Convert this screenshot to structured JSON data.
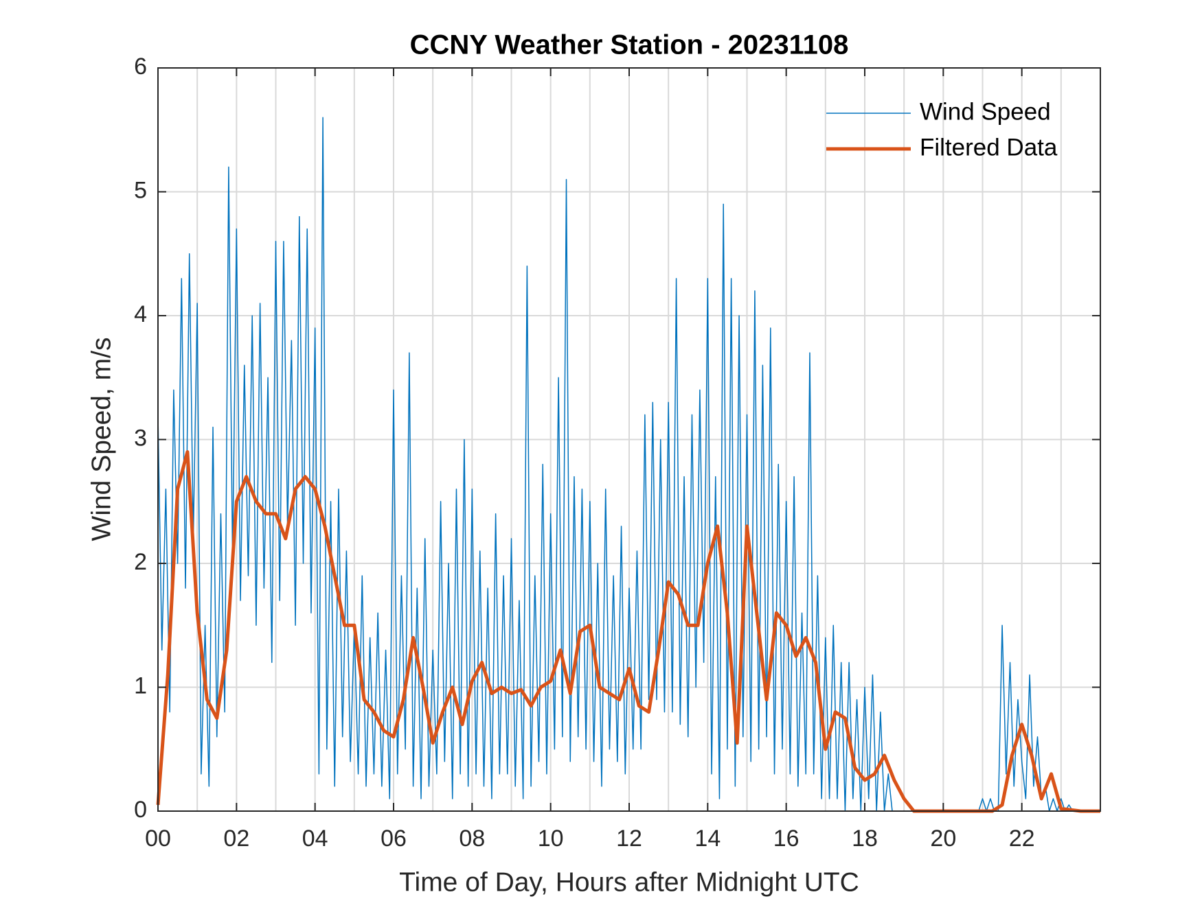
{
  "chart_data": {
    "type": "line",
    "title": "CCNY Weather Station - 20231108",
    "x_label": "Time of Day, Hours after Midnight UTC",
    "y_label": "Wind Speed, m/s",
    "xlim": [
      0,
      24
    ],
    "ylim": [
      0,
      6
    ],
    "xticks": [
      {
        "value": 0,
        "label": "00"
      },
      {
        "value": 2,
        "label": "02"
      },
      {
        "value": 4,
        "label": "04"
      },
      {
        "value": 6,
        "label": "06"
      },
      {
        "value": 8,
        "label": "08"
      },
      {
        "value": 10,
        "label": "10"
      },
      {
        "value": 12,
        "label": "12"
      },
      {
        "value": 14,
        "label": "14"
      },
      {
        "value": 16,
        "label": "16"
      },
      {
        "value": 18,
        "label": "18"
      },
      {
        "value": 20,
        "label": "20"
      },
      {
        "value": 22,
        "label": "22"
      }
    ],
    "xminorticks": [
      1,
      3,
      5,
      7,
      9,
      11,
      13,
      15,
      17,
      19,
      21,
      23
    ],
    "yticks": [
      0,
      1,
      2,
      3,
      4,
      5,
      6
    ],
    "grid": true,
    "legend": "upper right",
    "series": [
      {
        "name": "Wind Speed",
        "color": "#0072BD",
        "width": 1.5,
        "x": [
          0,
          0.1,
          0.2,
          0.3,
          0.4,
          0.5,
          0.6,
          0.7,
          0.8,
          0.9,
          1,
          1.1,
          1.2,
          1.3,
          1.4,
          1.5,
          1.6,
          1.7,
          1.8,
          1.9,
          2,
          2.1,
          2.2,
          2.3,
          2.4,
          2.5,
          2.6,
          2.7,
          2.8,
          2.9,
          3,
          3.1,
          3.2,
          3.3,
          3.4,
          3.5,
          3.6,
          3.7,
          3.8,
          3.9,
          4,
          4.1,
          4.2,
          4.3,
          4.4,
          4.5,
          4.6,
          4.7,
          4.8,
          4.9,
          5,
          5.1,
          5.2,
          5.3,
          5.4,
          5.5,
          5.6,
          5.7,
          5.8,
          5.9,
          6,
          6.1,
          6.2,
          6.3,
          6.4,
          6.5,
          6.6,
          6.7,
          6.8,
          6.9,
          7,
          7.1,
          7.2,
          7.3,
          7.4,
          7.5,
          7.6,
          7.7,
          7.8,
          7.9,
          8,
          8.1,
          8.2,
          8.3,
          8.4,
          8.5,
          8.6,
          8.7,
          8.8,
          8.9,
          9,
          9.1,
          9.2,
          9.3,
          9.4,
          9.5,
          9.6,
          9.7,
          9.8,
          9.9,
          10,
          10.1,
          10.2,
          10.3,
          10.4,
          10.5,
          10.6,
          10.7,
          10.8,
          10.9,
          11,
          11.1,
          11.2,
          11.3,
          11.4,
          11.5,
          11.6,
          11.7,
          11.8,
          11.9,
          12,
          12.1,
          12.2,
          12.3,
          12.4,
          12.5,
          12.6,
          12.7,
          12.8,
          12.9,
          13,
          13.1,
          13.2,
          13.3,
          13.4,
          13.5,
          13.6,
          13.7,
          13.8,
          13.9,
          14,
          14.1,
          14.2,
          14.3,
          14.4,
          14.5,
          14.6,
          14.7,
          14.8,
          14.9,
          15,
          15.1,
          15.2,
          15.3,
          15.4,
          15.5,
          15.6,
          15.7,
          15.8,
          15.9,
          16,
          16.1,
          16.2,
          16.3,
          16.4,
          16.5,
          16.6,
          16.7,
          16.8,
          16.9,
          17,
          17.1,
          17.2,
          17.3,
          17.4,
          17.5,
          17.6,
          17.7,
          17.8,
          17.9,
          18,
          18.1,
          18.2,
          18.3,
          18.4,
          18.5,
          18.6,
          18.7,
          18.8,
          18.9,
          19,
          19.1,
          19.2,
          19.3,
          19.4,
          19.5,
          19.6,
          19.7,
          19.8,
          19.9,
          20,
          20.1,
          20.2,
          20.3,
          20.4,
          20.5,
          20.6,
          20.7,
          20.8,
          20.9,
          21,
          21.1,
          21.2,
          21.3,
          21.4,
          21.5,
          21.6,
          21.7,
          21.8,
          21.9,
          22,
          22.1,
          22.2,
          22.3,
          22.4,
          22.5,
          22.6,
          22.7,
          22.8,
          22.9,
          23,
          23.1,
          23.2,
          23.3,
          23.4,
          23.5,
          23.6,
          23.7,
          23.8,
          23.9
        ],
        "values": [
          3.2,
          1.3,
          2.6,
          0.8,
          3.4,
          2.0,
          4.3,
          1.8,
          4.5,
          2.2,
          4.1,
          0.3,
          1.5,
          0.2,
          3.1,
          0.6,
          2.4,
          0.8,
          5.2,
          2.0,
          4.7,
          1.7,
          3.6,
          1.9,
          4.0,
          1.5,
          4.1,
          1.8,
          3.5,
          1.2,
          4.6,
          1.7,
          4.6,
          2.3,
          3.8,
          1.5,
          4.8,
          2.0,
          4.7,
          1.6,
          3.9,
          0.3,
          5.6,
          0.5,
          2.5,
          0.2,
          2.6,
          0.6,
          2.1,
          0.4,
          1.5,
          0.3,
          1.9,
          0.2,
          1.4,
          0.3,
          1.6,
          0.2,
          1.3,
          0.1,
          3.4,
          0.3,
          1.9,
          0.5,
          3.7,
          0.2,
          1.8,
          0.1,
          2.2,
          0.2,
          1.3,
          0.3,
          2.5,
          0.4,
          2.0,
          0.1,
          2.6,
          0.3,
          3.0,
          0.2,
          2.6,
          0.3,
          2.1,
          0.2,
          1.8,
          0.1,
          2.4,
          0.3,
          1.9,
          0.3,
          2.2,
          0.2,
          1.7,
          0.1,
          4.4,
          0.2,
          1.9,
          0.4,
          2.8,
          0.3,
          2.4,
          0.5,
          3.5,
          0.6,
          5.1,
          0.4,
          2.7,
          0.6,
          2.6,
          0.5,
          2.5,
          0.4,
          2.0,
          0.2,
          2.6,
          0.5,
          1.9,
          0.4,
          2.3,
          0.3,
          1.8,
          0.5,
          2.1,
          0.5,
          3.2,
          0.9,
          3.3,
          0.9,
          3.0,
          0.8,
          3.3,
          0.8,
          4.3,
          0.7,
          2.7,
          0.6,
          3.2,
          1.0,
          3.4,
          1.2,
          4.3,
          0.3,
          2.7,
          0.1,
          4.9,
          0.5,
          4.3,
          0.2,
          4.0,
          0.6,
          3.2,
          0.4,
          4.2,
          0.5,
          3.6,
          0.6,
          3.9,
          0.3,
          2.8,
          0.5,
          2.5,
          0.3,
          2.7,
          0.2,
          1.6,
          0.3,
          3.7,
          0.3,
          1.9,
          0.1,
          1.4,
          0.1,
          1.5,
          0.1,
          1.2,
          0,
          1.2,
          0.1,
          0.9,
          0,
          1.0,
          0.1,
          1.1,
          0,
          0.8,
          0,
          0.3,
          0,
          0,
          0,
          0,
          0,
          0,
          0,
          0,
          0,
          0,
          0,
          0,
          0,
          0,
          0,
          0,
          0,
          0,
          0,
          0,
          0,
          0,
          0,
          0.1,
          0,
          0.1,
          0,
          0,
          1.5,
          0.3,
          1.2,
          0.2,
          0.9,
          0.4,
          0.1,
          1.1,
          0.2,
          0.6,
          0.1,
          0.2,
          0,
          0.1,
          0,
          0.1,
          0,
          0.05,
          0,
          0,
          0,
          0,
          0,
          0,
          0
        ]
      },
      {
        "name": "Filtered Data",
        "color": "#D95319",
        "width": 5,
        "x": [
          0,
          0.25,
          0.5,
          0.75,
          1,
          1.25,
          1.5,
          1.75,
          2,
          2.25,
          2.5,
          2.75,
          3,
          3.25,
          3.5,
          3.75,
          4,
          4.25,
          4.5,
          4.75,
          5,
          5.25,
          5.5,
          5.75,
          6,
          6.25,
          6.5,
          6.75,
          7,
          7.25,
          7.5,
          7.75,
          8,
          8.25,
          8.5,
          8.75,
          9,
          9.25,
          9.5,
          9.75,
          10,
          10.25,
          10.5,
          10.75,
          11,
          11.25,
          11.5,
          11.75,
          12,
          12.25,
          12.5,
          12.75,
          13,
          13.25,
          13.5,
          13.75,
          14,
          14.25,
          14.5,
          14.75,
          15,
          15.25,
          15.5,
          15.75,
          16,
          16.25,
          16.5,
          16.75,
          17,
          17.25,
          17.5,
          17.75,
          18,
          18.25,
          18.5,
          18.75,
          19,
          19.25,
          19.5,
          19.75,
          20,
          20.25,
          20.5,
          20.75,
          21,
          21.25,
          21.5,
          21.75,
          22,
          22.25,
          22.5,
          22.75,
          23,
          23.25,
          23.5,
          23.75,
          24
        ],
        "values": [
          0.05,
          1.1,
          2.6,
          2.9,
          1.6,
          0.9,
          0.75,
          1.3,
          2.5,
          2.7,
          2.5,
          2.4,
          2.4,
          2.2,
          2.6,
          2.7,
          2.6,
          2.3,
          1.9,
          1.5,
          1.5,
          0.9,
          0.8,
          0.65,
          0.6,
          0.9,
          1.4,
          1.0,
          0.55,
          0.8,
          1.0,
          0.7,
          1.05,
          1.2,
          0.95,
          1.0,
          0.95,
          0.98,
          0.85,
          1.0,
          1.05,
          1.3,
          0.95,
          1.45,
          1.5,
          1.0,
          0.95,
          0.9,
          1.15,
          0.85,
          0.8,
          1.3,
          1.85,
          1.75,
          1.5,
          1.5,
          2.0,
          2.3,
          1.6,
          0.55,
          2.3,
          1.6,
          0.9,
          1.6,
          1.5,
          1.25,
          1.4,
          1.2,
          0.5,
          0.8,
          0.75,
          0.35,
          0.25,
          0.3,
          0.45,
          0.25,
          0.1,
          0,
          0,
          0,
          0,
          0,
          0,
          0,
          0,
          0,
          0.05,
          0.45,
          0.7,
          0.45,
          0.1,
          0.3,
          0.02,
          0.01,
          0,
          0,
          0
        ]
      }
    ]
  }
}
